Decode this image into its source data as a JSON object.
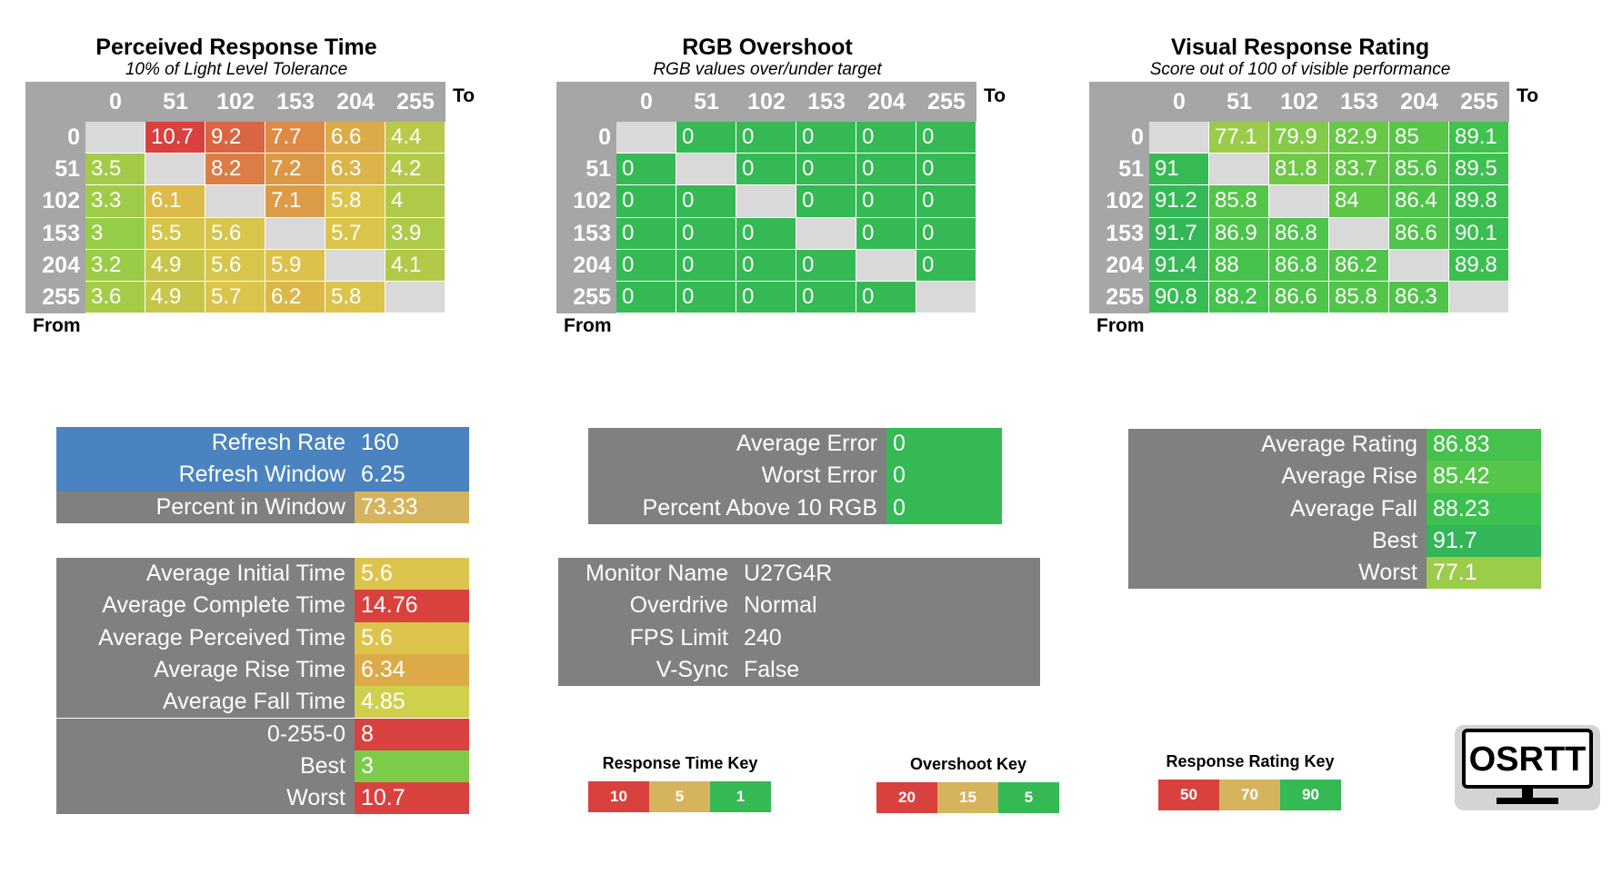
{
  "heatmaps": [
    {
      "title": "Perceived Response Time",
      "subtitle": "10% of Light Level Tolerance",
      "scale": "response",
      "columns": [
        "0",
        "51",
        "102",
        "153",
        "204",
        "255"
      ],
      "rows": [
        "0",
        "51",
        "102",
        "153",
        "204",
        "255"
      ],
      "to_label": "To",
      "from_label": "From",
      "values": [
        [
          "",
          "10.7",
          "9.2",
          "7.7",
          "6.6",
          "4.4"
        ],
        [
          "3.5",
          "",
          "8.2",
          "7.2",
          "6.3",
          "4.2"
        ],
        [
          "3.3",
          "6.1",
          "",
          "7.1",
          "5.8",
          "4"
        ],
        [
          "3",
          "5.5",
          "5.6",
          "",
          "5.7",
          "3.9"
        ],
        [
          "3.2",
          "4.9",
          "5.6",
          "5.9",
          "",
          "4.1"
        ],
        [
          "3.6",
          "4.9",
          "5.7",
          "6.2",
          "5.8",
          ""
        ]
      ]
    },
    {
      "title": "RGB Overshoot",
      "subtitle": "RGB values over/under target",
      "scale": "overshoot",
      "columns": [
        "0",
        "51",
        "102",
        "153",
        "204",
        "255"
      ],
      "rows": [
        "0",
        "51",
        "102",
        "153",
        "204",
        "255"
      ],
      "to_label": "To",
      "from_label": "From",
      "values": [
        [
          "",
          "0",
          "0",
          "0",
          "0",
          "0"
        ],
        [
          "0",
          "",
          "0",
          "0",
          "0",
          "0"
        ],
        [
          "0",
          "0",
          "",
          "0",
          "0",
          "0"
        ],
        [
          "0",
          "0",
          "0",
          "",
          "0",
          "0"
        ],
        [
          "0",
          "0",
          "0",
          "0",
          "",
          "0"
        ],
        [
          "0",
          "0",
          "0",
          "0",
          "0",
          ""
        ]
      ]
    },
    {
      "title": "Visual Response Rating",
      "subtitle": "Score out of 100 of visible performance",
      "scale": "rating",
      "columns": [
        "0",
        "51",
        "102",
        "153",
        "204",
        "255"
      ],
      "rows": [
        "0",
        "51",
        "102",
        "153",
        "204",
        "255"
      ],
      "to_label": "To",
      "from_label": "From",
      "values": [
        [
          "",
          "77.1",
          "79.9",
          "82.9",
          "85",
          "89.1"
        ],
        [
          "91",
          "",
          "81.8",
          "83.7",
          "85.6",
          "89.5"
        ],
        [
          "91.2",
          "85.8",
          "",
          "84",
          "86.4",
          "89.8"
        ],
        [
          "91.7",
          "86.9",
          "86.8",
          "",
          "86.6",
          "90.1"
        ],
        [
          "91.4",
          "88",
          "86.8",
          "86.2",
          "",
          "89.8"
        ],
        [
          "90.8",
          "88.2",
          "86.6",
          "85.8",
          "86.3",
          ""
        ]
      ]
    }
  ],
  "stat_tables": {
    "refresh": [
      {
        "label": "Refresh Rate",
        "value": "160",
        "label_color": "#4a83bf",
        "value_color": "#4a83bf"
      },
      {
        "label": "Refresh Window",
        "value": "6.25",
        "label_color": "#4a83bf",
        "value_color": "#4a83bf"
      },
      {
        "label": "Percent in Window",
        "value": "73.33",
        "label_color": "#808080",
        "value_color": "#d6b45e"
      }
    ],
    "error": [
      {
        "label": "Average Error",
        "value": "0",
        "label_color": "#808080",
        "value_color": "#35b955"
      },
      {
        "label": "Worst Error",
        "value": "0",
        "label_color": "#808080",
        "value_color": "#35b955"
      },
      {
        "label": "Percent Above 10 RGB",
        "value": "0",
        "label_color": "#808080",
        "value_color": "#35b955"
      }
    ],
    "rating": [
      {
        "label": "Average Rating",
        "value": "86.83",
        "label_color": "#808080",
        "value_color": "#45c14d"
      },
      {
        "label": "Average Rise",
        "value": "85.42",
        "label_color": "#808080",
        "value_color": "#55c649"
      },
      {
        "label": "Average Fall",
        "value": "88.23",
        "label_color": "#808080",
        "value_color": "#3cc050"
      },
      {
        "label": "Best",
        "value": "91.7",
        "label_color": "#808080",
        "value_color": "#32b657"
      },
      {
        "label": "Worst",
        "value": "77.1",
        "label_color": "#808080",
        "value_color": "#9bcc4a"
      }
    ],
    "times": [
      {
        "label": "Average Initial Time",
        "value": "5.6",
        "label_color": "#808080",
        "value_color": "#dcc44c"
      },
      {
        "label": "Average Complete Time",
        "value": "14.76",
        "label_color": "#808080",
        "value_color": "#d9413f"
      },
      {
        "label": "Average Perceived Time",
        "value": "5.6",
        "label_color": "#808080",
        "value_color": "#dcc44c"
      },
      {
        "label": "Average Rise Time",
        "value": "6.34",
        "label_color": "#808080",
        "value_color": "#dcab48"
      },
      {
        "label": "Average Fall Time",
        "value": "4.85",
        "label_color": "#808080",
        "value_color": "#cfd04c"
      },
      {
        "label": "0-255-0",
        "value": "8",
        "label_color": "#808080",
        "value_color": "#d9413f"
      },
      {
        "label": "Best",
        "value": "3",
        "label_color": "#808080",
        "value_color": "#7ccc4a"
      },
      {
        "label": "Worst",
        "value": "10.7",
        "label_color": "#808080",
        "value_color": "#d9413f"
      }
    ],
    "monitor": [
      {
        "label": "Monitor Name",
        "value": "U27G4R",
        "label_color": "#808080",
        "value_color": "#808080"
      },
      {
        "label": "Overdrive",
        "value": "Normal",
        "label_color": "#808080",
        "value_color": "#808080"
      },
      {
        "label": "FPS Limit",
        "value": "240",
        "label_color": "#808080",
        "value_color": "#808080"
      },
      {
        "label": "V-Sync",
        "value": "False",
        "label_color": "#808080",
        "value_color": "#808080"
      }
    ]
  },
  "keys": [
    {
      "title": "Response Time Key",
      "items": [
        {
          "label": "10",
          "color": "#d9413f"
        },
        {
          "label": "5",
          "color": "#d6b45e"
        },
        {
          "label": "1",
          "color": "#35b955"
        }
      ]
    },
    {
      "title": "Overshoot Key",
      "items": [
        {
          "label": "20",
          "color": "#d9413f"
        },
        {
          "label": "15",
          "color": "#d6b45e"
        },
        {
          "label": "5",
          "color": "#35b955"
        }
      ]
    },
    {
      "title": "Response Rating Key",
      "items": [
        {
          "label": "50",
          "color": "#d9413f"
        },
        {
          "label": "70",
          "color": "#d6b45e"
        },
        {
          "label": "90",
          "color": "#35b955"
        }
      ]
    }
  ],
  "logo": {
    "text": "OSRTT"
  },
  "colors": {
    "header_gray": "#a6a6a6",
    "diagonal_gray": "#d9d9d9",
    "label_gray": "#808080",
    "red": "#d9413f",
    "orange": "#dc8c45",
    "yellow": "#dcc44c",
    "lime": "#96cd47",
    "green": "#35b955"
  },
  "chart_data": [
    {
      "type": "heatmap",
      "title": "Perceived Response Time",
      "subtitle": "10% of Light Level Tolerance",
      "x": [
        "0",
        "51",
        "102",
        "153",
        "204",
        "255"
      ],
      "y": [
        "0",
        "51",
        "102",
        "153",
        "204",
        "255"
      ],
      "xlabel": "To",
      "ylabel": "From",
      "values": [
        [
          null,
          10.7,
          9.2,
          7.7,
          6.6,
          4.4
        ],
        [
          3.5,
          null,
          8.2,
          7.2,
          6.3,
          4.2
        ],
        [
          3.3,
          6.1,
          null,
          7.1,
          5.8,
          4
        ],
        [
          3,
          5.5,
          5.6,
          null,
          5.7,
          3.9
        ],
        [
          3.2,
          4.9,
          5.6,
          5.9,
          null,
          4.1
        ],
        [
          3.6,
          4.9,
          5.7,
          6.2,
          5.8,
          null
        ]
      ]
    },
    {
      "type": "heatmap",
      "title": "RGB Overshoot",
      "subtitle": "RGB values over/under target",
      "x": [
        "0",
        "51",
        "102",
        "153",
        "204",
        "255"
      ],
      "y": [
        "0",
        "51",
        "102",
        "153",
        "204",
        "255"
      ],
      "xlabel": "To",
      "ylabel": "From",
      "values": [
        [
          null,
          0,
          0,
          0,
          0,
          0
        ],
        [
          0,
          null,
          0,
          0,
          0,
          0
        ],
        [
          0,
          0,
          null,
          0,
          0,
          0
        ],
        [
          0,
          0,
          0,
          null,
          0,
          0
        ],
        [
          0,
          0,
          0,
          0,
          null,
          0
        ],
        [
          0,
          0,
          0,
          0,
          0,
          null
        ]
      ]
    },
    {
      "type": "heatmap",
      "title": "Visual Response Rating",
      "subtitle": "Score out of 100 of visible performance",
      "x": [
        "0",
        "51",
        "102",
        "153",
        "204",
        "255"
      ],
      "y": [
        "0",
        "51",
        "102",
        "153",
        "204",
        "255"
      ],
      "xlabel": "To",
      "ylabel": "From",
      "values": [
        [
          null,
          77.1,
          79.9,
          82.9,
          85,
          89.1
        ],
        [
          91,
          null,
          81.8,
          83.7,
          85.6,
          89.5
        ],
        [
          91.2,
          85.8,
          null,
          84,
          86.4,
          89.8
        ],
        [
          91.7,
          86.9,
          86.8,
          null,
          86.6,
          90.1
        ],
        [
          91.4,
          88,
          86.8,
          86.2,
          null,
          89.8
        ],
        [
          90.8,
          88.2,
          86.6,
          85.8,
          86.3,
          null
        ]
      ]
    }
  ]
}
